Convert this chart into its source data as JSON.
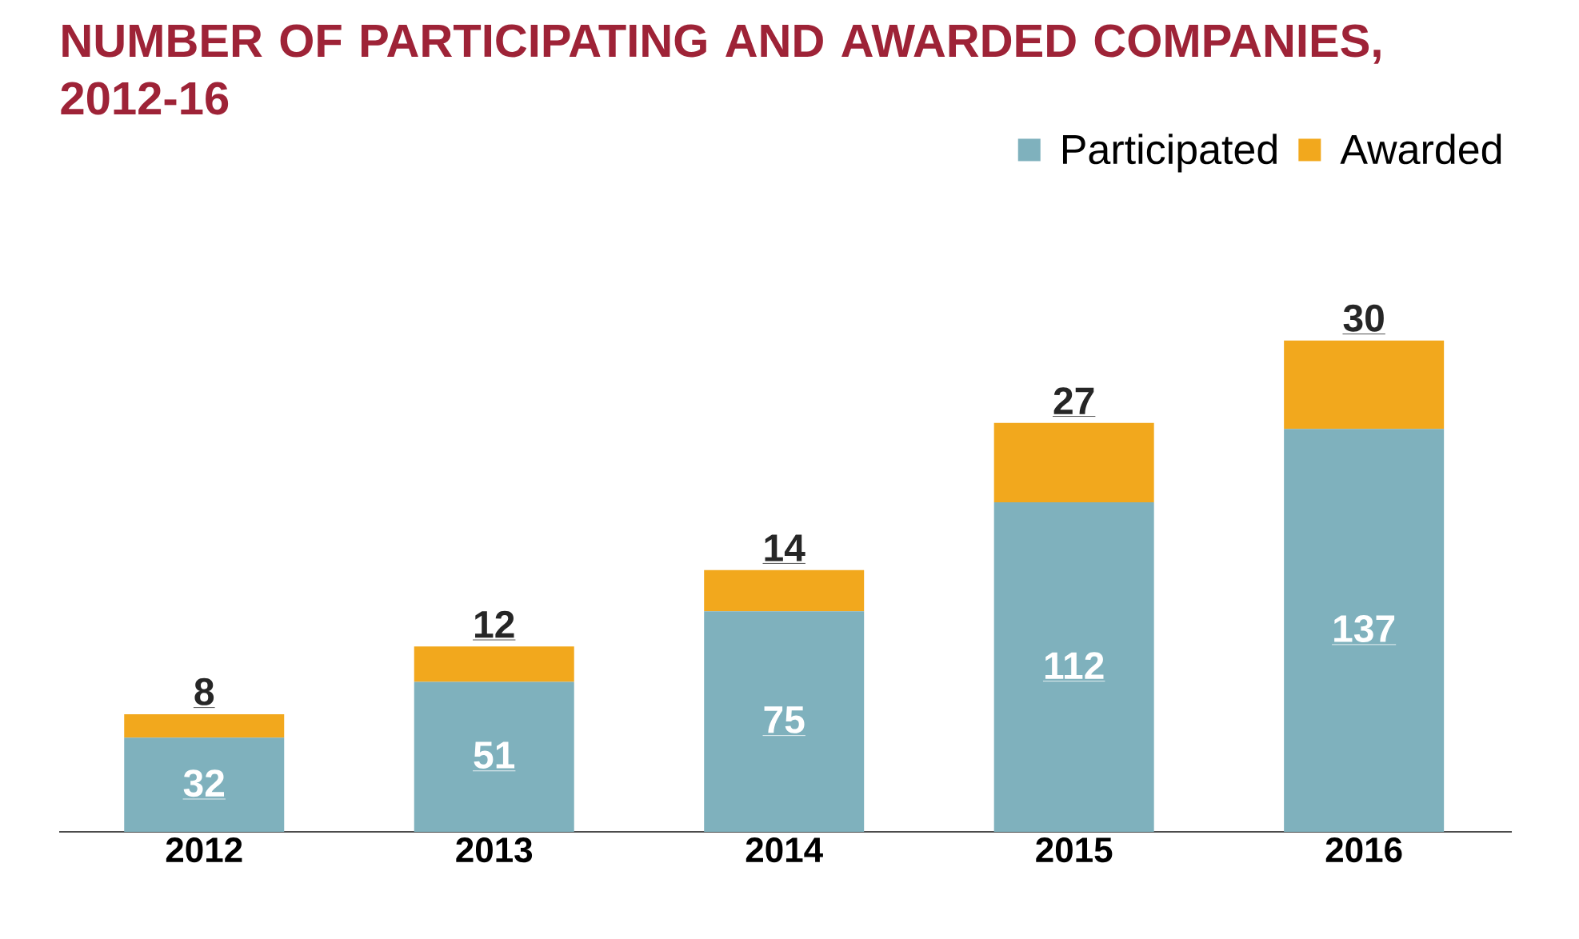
{
  "chart_data": {
    "type": "bar",
    "title": "NUMBER OF PARTICIPATING AND AWARDED COMPANIES, 2012-16",
    "categories": [
      "2012",
      "2013",
      "2014",
      "2015",
      "2016"
    ],
    "series": [
      {
        "name": "Participated",
        "color": "#7fb1bd",
        "values": [
          32,
          51,
          75,
          112,
          137
        ]
      },
      {
        "name": "Awarded",
        "color": "#f2a81d",
        "values": [
          8,
          12,
          14,
          27,
          30
        ]
      }
    ],
    "stacked": true,
    "data_labels": true,
    "legend": "top right",
    "tick_labels": "x"
  }
}
